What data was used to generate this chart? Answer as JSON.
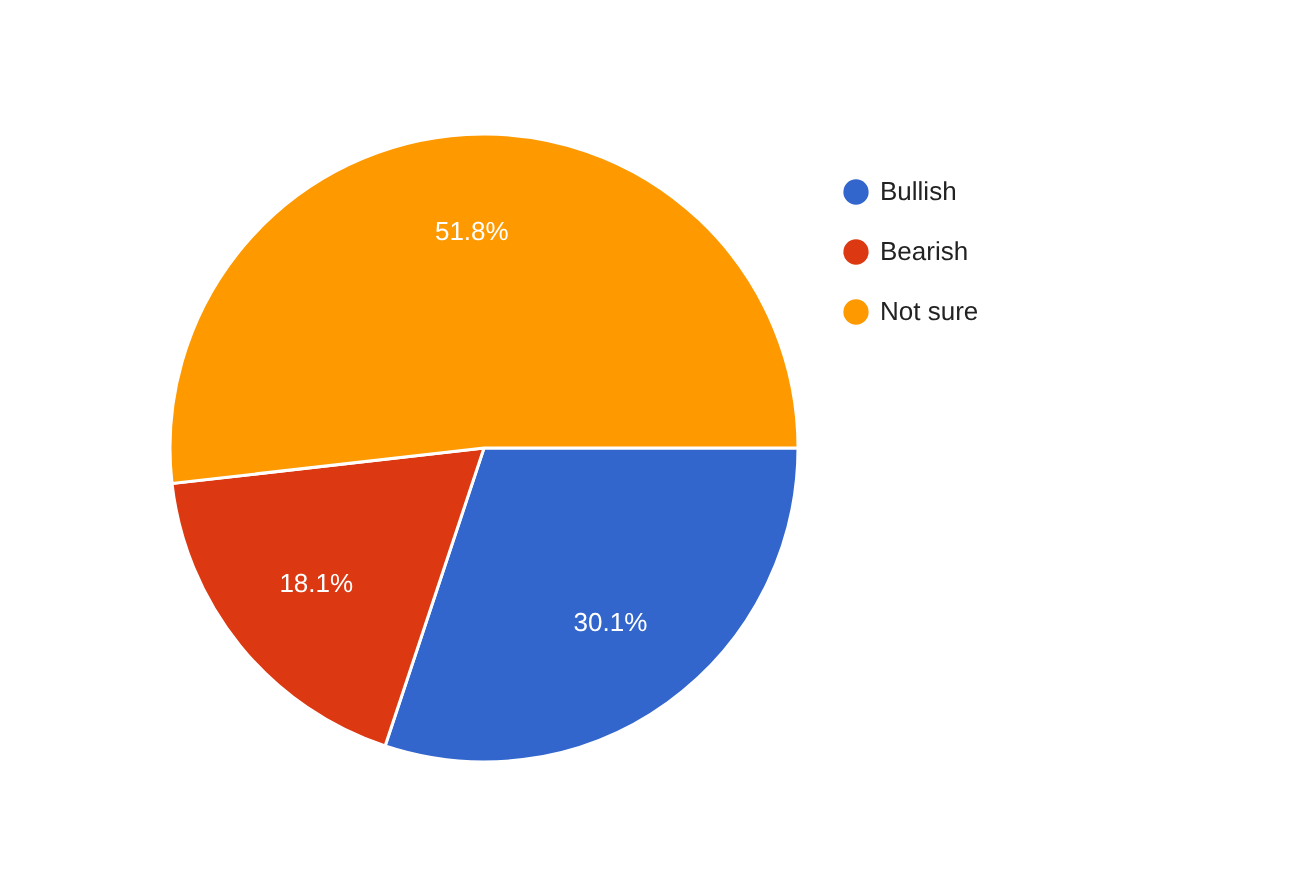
{
  "chart_data": {
    "type": "pie",
    "categories": [
      "Bullish",
      "Bearish",
      "Not sure"
    ],
    "values": [
      30.1,
      18.1,
      51.8
    ],
    "colors": [
      "#3366cc",
      "#dc3912",
      "#ff9900"
    ],
    "value_labels": [
      "30.1%",
      "18.1%",
      "51.8%"
    ],
    "legend": "top right"
  }
}
